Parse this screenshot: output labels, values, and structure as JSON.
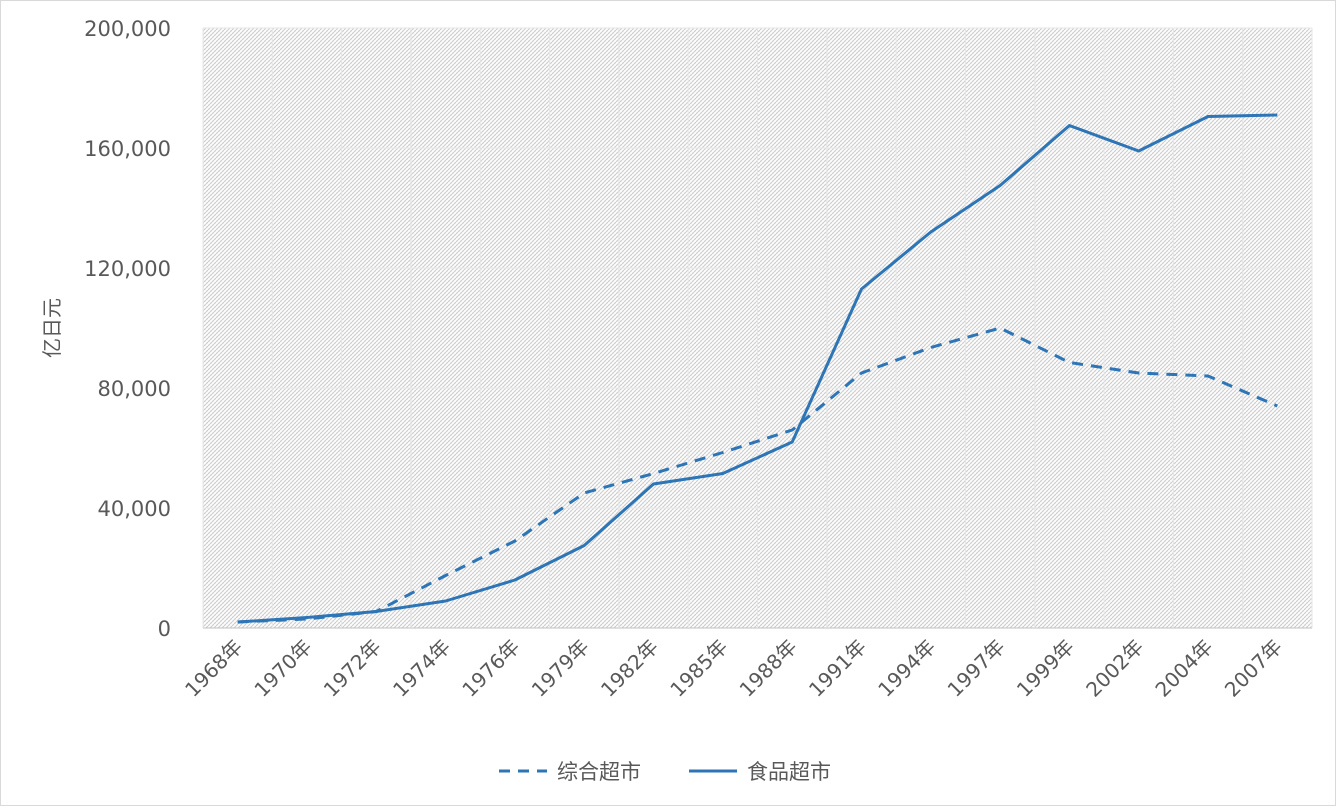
{
  "chart_data": {
    "type": "line",
    "ylabel": "亿日元",
    "ylim": [
      0,
      200000
    ],
    "yticks": [
      0,
      40000,
      80000,
      120000,
      160000,
      200000
    ],
    "ytick_labels": [
      "0",
      "40,000",
      "80,000",
      "120,000",
      "160,000",
      "200,000"
    ],
    "grid": true,
    "legend_position": "bottom",
    "categories": [
      "1968年",
      "1970年",
      "1972年",
      "1974年",
      "1976年",
      "1979年",
      "1982年",
      "1985年",
      "1988年",
      "1991年",
      "1994年",
      "1997年",
      "1999年",
      "2002年",
      "2004年",
      "2007年"
    ],
    "series": [
      {
        "name": "综合超市",
        "style": "dashed",
        "color": "#2e75b6",
        "values": [
          2000,
          3000,
          5500,
          17500,
          29000,
          45000,
          51500,
          58500,
          66000,
          85000,
          93500,
          100000,
          88500,
          85000,
          84000,
          74000
        ]
      },
      {
        "name": "食品超市",
        "style": "solid",
        "color": "#2e75b6",
        "values": [
          2000,
          3500,
          5500,
          9000,
          16000,
          27500,
          48000,
          51500,
          62000,
          113000,
          132000,
          147500,
          167500,
          159000,
          170500,
          171000
        ]
      }
    ]
  }
}
